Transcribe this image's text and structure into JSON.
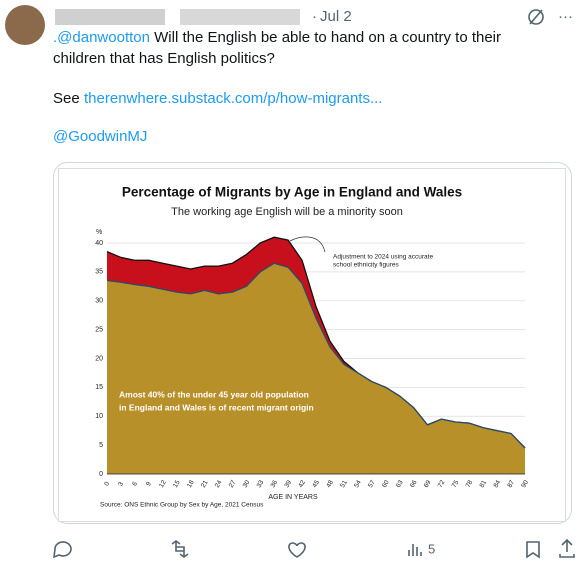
{
  "tweet": {
    "date": "Jul 2",
    "mention_reply": ".@danwootton",
    "text_line1": " Will the English be able to hand on a country to their",
    "text_line2": "children that has English politics?",
    "see": "See",
    "link": "therenwhere.substack.com/p/how-migrants...",
    "mention": "@GoodwinMJ",
    "views": "5"
  },
  "chart_data": {
    "type": "area",
    "title": "Percentage of Migrants by Age in England and Wales",
    "subtitle": "The working age English will be a minority soon",
    "y_unit": "%",
    "xlabel": "AGE IN YEARS",
    "annotation_line1": "Adjustment to 2024 using accurate",
    "annotation_line2": "school ethnicity figures",
    "note_line1": "Amost 40% of the under 45 year old population",
    "note_line2": "in England and Wales is of recent migrant origin",
    "source": "Source: ONS Ethnic Group by Sex by Age, 2021 Census",
    "x": [
      0,
      3,
      6,
      9,
      12,
      15,
      18,
      21,
      24,
      27,
      30,
      33,
      36,
      39,
      42,
      45,
      48,
      51,
      54,
      57,
      60,
      63,
      66,
      69,
      72,
      75,
      78,
      81,
      84,
      87,
      90
    ],
    "series": [
      {
        "color": "#c8101c",
        "values": [
          38.5,
          37.5,
          37,
          37,
          36.5,
          36,
          35.5,
          36,
          36,
          36.5,
          38,
          40,
          41,
          40.5,
          37,
          29,
          23,
          19.5,
          17.5,
          16,
          15,
          13.5,
          11.5,
          8.5,
          9.5,
          9,
          8.8,
          8,
          7.5,
          7,
          4.5
        ]
      },
      {
        "color": "#b8902a",
        "values": [
          33.5,
          33.2,
          32.8,
          32.5,
          32,
          31.5,
          31.2,
          31.8,
          31.2,
          31.5,
          32.5,
          35,
          36.5,
          35.8,
          33,
          27,
          22,
          19,
          17.5,
          16,
          15,
          13.5,
          11.5,
          8.5,
          9.5,
          9,
          8.8,
          8,
          7.5,
          7,
          4.5
        ]
      }
    ],
    "xlim": [
      0,
      90
    ],
    "xticks": [
      0,
      3,
      6,
      9,
      12,
      15,
      18,
      21,
      24,
      27,
      30,
      33,
      36,
      39,
      42,
      45,
      48,
      51,
      54,
      57,
      60,
      63,
      66,
      69,
      72,
      75,
      78,
      81,
      84,
      87,
      90
    ],
    "ylim": [
      0,
      40
    ],
    "yticks": [
      0,
      5,
      10,
      15,
      20,
      25,
      30,
      35,
      40
    ],
    "grid": true
  }
}
